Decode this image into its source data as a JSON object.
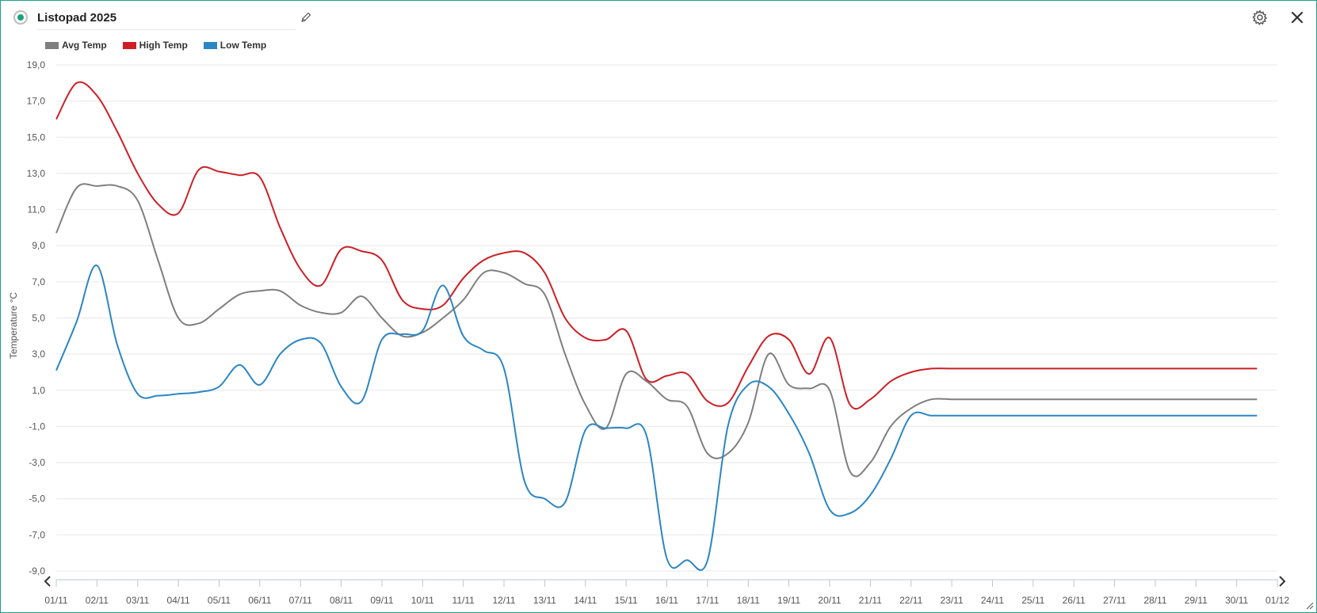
{
  "header": {
    "title": "Listopad 2025",
    "status_icon": "status-dot-icon",
    "edit_icon": "pencil-icon",
    "settings_icon": "gear-icon",
    "close_icon": "close-icon"
  },
  "navigation": {
    "prev_icon": "chevron-left-icon",
    "next_icon": "chevron-right-icon"
  },
  "colors": {
    "frame_border": "#1f9e89",
    "status_dot": "#1aa37c",
    "grid": "#e8e8e8"
  },
  "chart_data": {
    "type": "line",
    "title": "",
    "xlabel": "",
    "ylabel": "Temperature °C",
    "ylim": [
      -9.0,
      19.0
    ],
    "yticks": [
      "19,0",
      "17,0",
      "15,0",
      "13,0",
      "11,0",
      "9,0",
      "7,0",
      "5,0",
      "3,0",
      "1,0",
      "-1,0",
      "-3,0",
      "-5,0",
      "-7,0",
      "-9,0"
    ],
    "categories": [
      "01/11",
      "02/11",
      "03/11",
      "04/11",
      "05/11",
      "06/11",
      "07/11",
      "08/11",
      "09/11",
      "10/11",
      "11/11",
      "12/11",
      "13/11",
      "14/11",
      "15/11",
      "16/11",
      "17/11",
      "18/11",
      "19/11",
      "20/11",
      "21/11",
      "22/11",
      "23/11",
      "24/11",
      "25/11",
      "26/11",
      "27/11",
      "28/11",
      "29/11",
      "30/11",
      "01/12"
    ],
    "grid": true,
    "legend_position": "top-left",
    "series": [
      {
        "name": "Avg Temp",
        "color": "#7f7f7f",
        "x": [
          0.0,
          0.5,
          1.0,
          1.5,
          2.0,
          2.5,
          3.0,
          3.5,
          4.0,
          4.5,
          5.0,
          5.5,
          6.0,
          6.5,
          7.0,
          7.5,
          8.0,
          8.5,
          9.0,
          9.5,
          10.0,
          10.5,
          11.0,
          11.5,
          12.0,
          12.5,
          13.0,
          13.5,
          14.0,
          14.5,
          15.0,
          15.5,
          16.0,
          16.5,
          17.0,
          17.5,
          18.0,
          18.5,
          19.0,
          19.5,
          20.0,
          20.5,
          21.0,
          21.5,
          22.0,
          22.5,
          23.0,
          23.5,
          24.0,
          24.5,
          25.0,
          25.5,
          26.0,
          26.5,
          27.0,
          27.5,
          28.0,
          28.5,
          29.0,
          29.5
        ],
        "values": [
          9.7,
          12.2,
          12.3,
          12.3,
          11.5,
          8.2,
          5.0,
          4.7,
          5.5,
          6.3,
          6.5,
          6.5,
          5.7,
          5.3,
          5.3,
          6.2,
          5.0,
          4.0,
          4.2,
          5.0,
          6.0,
          7.5,
          7.5,
          6.9,
          6.3,
          3.0,
          0.2,
          -1.1,
          1.9,
          1.5,
          0.5,
          0.1,
          -2.5,
          -2.5,
          -0.8,
          3.0,
          1.3,
          1.1,
          1.0,
          -3.5,
          -3.0,
          -1.0,
          0.0,
          0.5,
          0.5,
          0.5,
          0.5,
          0.5,
          0.5,
          0.5,
          0.5,
          0.5,
          0.5,
          0.5,
          0.5,
          0.5,
          0.5,
          0.5,
          0.5,
          0.5
        ]
      },
      {
        "name": "High Temp",
        "color": "#cc1f26",
        "x": [
          0.0,
          0.5,
          1.0,
          1.5,
          2.0,
          2.5,
          3.0,
          3.5,
          4.0,
          4.5,
          5.0,
          5.5,
          6.0,
          6.5,
          7.0,
          7.5,
          8.0,
          8.5,
          9.0,
          9.5,
          10.0,
          10.5,
          11.0,
          11.5,
          12.0,
          12.5,
          13.0,
          13.5,
          14.0,
          14.5,
          15.0,
          15.5,
          16.0,
          16.5,
          17.0,
          17.5,
          18.0,
          18.5,
          19.0,
          19.5,
          20.0,
          20.5,
          21.0,
          21.5,
          22.0,
          22.5,
          23.0,
          23.5,
          24.0,
          24.5,
          25.0,
          25.5,
          26.0,
          26.5,
          27.0,
          27.5,
          28.0,
          28.5,
          29.0,
          29.5
        ],
        "values": [
          16.0,
          18.0,
          17.3,
          15.3,
          13.0,
          11.3,
          10.8,
          13.2,
          13.1,
          12.9,
          12.8,
          10.0,
          7.7,
          6.8,
          8.8,
          8.7,
          8.2,
          6.0,
          5.5,
          5.7,
          7.2,
          8.2,
          8.6,
          8.6,
          7.5,
          5.0,
          3.9,
          3.8,
          4.3,
          1.6,
          1.8,
          1.9,
          0.4,
          0.3,
          2.3,
          4.0,
          3.8,
          1.9,
          3.9,
          0.2,
          0.5,
          1.5,
          2.0,
          2.2,
          2.2,
          2.2,
          2.2,
          2.2,
          2.2,
          2.2,
          2.2,
          2.2,
          2.2,
          2.2,
          2.2,
          2.2,
          2.2,
          2.2,
          2.2,
          2.2
        ]
      },
      {
        "name": "Low Temp",
        "color": "#2b86c4",
        "x": [
          0.0,
          0.5,
          1.0,
          1.5,
          2.0,
          2.5,
          3.0,
          3.5,
          4.0,
          4.5,
          5.0,
          5.5,
          6.0,
          6.5,
          7.0,
          7.5,
          8.0,
          8.5,
          9.0,
          9.5,
          10.0,
          10.5,
          11.0,
          11.5,
          12.0,
          12.5,
          13.0,
          13.5,
          14.0,
          14.5,
          15.0,
          15.5,
          16.0,
          16.5,
          17.0,
          17.5,
          18.0,
          18.5,
          19.0,
          19.5,
          20.0,
          20.5,
          21.0,
          21.5,
          22.0,
          22.5,
          23.0,
          23.5,
          24.0,
          24.5,
          25.0,
          25.5,
          26.0,
          26.5,
          27.0,
          27.5,
          28.0,
          28.5,
          29.0,
          29.5
        ],
        "values": [
          2.1,
          4.8,
          7.9,
          3.5,
          0.8,
          0.7,
          0.8,
          0.9,
          1.2,
          2.4,
          1.3,
          3.0,
          3.8,
          3.6,
          1.2,
          0.4,
          3.8,
          4.1,
          4.3,
          6.8,
          4.0,
          3.2,
          2.2,
          -4.0,
          -5.0,
          -5.2,
          -1.2,
          -1.1,
          -1.1,
          -1.5,
          -8.3,
          -8.4,
          -8.4,
          -1.0,
          1.3,
          1.2,
          -0.3,
          -2.5,
          -5.6,
          -5.8,
          -4.8,
          -2.8,
          -0.4,
          -0.4,
          -0.4,
          -0.4,
          -0.4,
          -0.4,
          -0.4,
          -0.4,
          -0.4,
          -0.4,
          -0.4,
          -0.4,
          -0.4,
          -0.4,
          -0.4,
          -0.4,
          -0.4,
          -0.4
        ]
      }
    ]
  }
}
